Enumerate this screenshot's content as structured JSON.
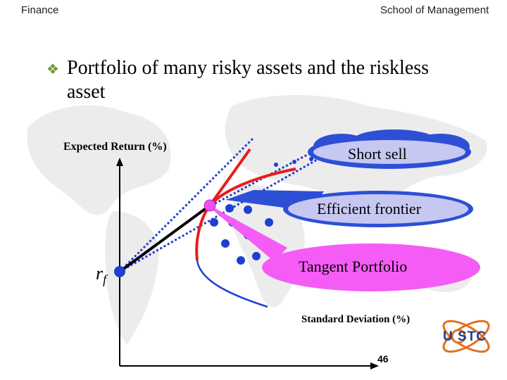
{
  "header": {
    "left": "Finance",
    "right": "School of Management"
  },
  "title": {
    "line1": "Portfolio of many risky assets and the riskless",
    "line2": "asset"
  },
  "axes": {
    "ylabel": "Expected Return (%)",
    "xlabel": "Standard Deviation (%)"
  },
  "rf": {
    "symbol": "r",
    "subscript": "f"
  },
  "callouts": {
    "short_sell": "Short sell",
    "efficient_frontier": "Efficient frontier",
    "tangent_portfolio": "Tangent Portfolio"
  },
  "page_number": "46",
  "logo": {
    "text": "U STC"
  },
  "colors": {
    "frontier": "#e81c1c",
    "inefficient_branch": "#1f3fcf",
    "cml": "#1f3fcf",
    "tangent_point": "#f050f0",
    "callout_pink": "#f55cf5",
    "callout_blue": "#2d4fd6",
    "asset_dots": "#1f3fcf"
  },
  "icons": {
    "bullet": "diamond-clover-icon",
    "logo": "uestc-atom-logo-icon"
  }
}
